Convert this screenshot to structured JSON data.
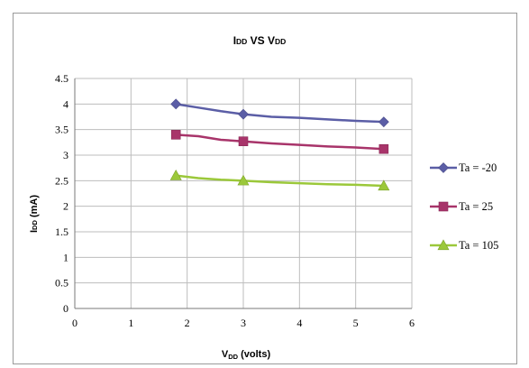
{
  "chart_data": {
    "type": "line",
    "title_parts": [
      "I",
      "DD",
      " VS V",
      "DD"
    ],
    "xlabel_parts": [
      "V",
      "DD",
      " (volts)"
    ],
    "ylabel_parts": [
      "I",
      "DD",
      " (mA)"
    ],
    "xlim": [
      0,
      6
    ],
    "ylim": [
      0,
      4.5
    ],
    "xticks": [
      "0",
      "1",
      "2",
      "3",
      "4",
      "5",
      "6"
    ],
    "yticks": [
      "0",
      "0.5",
      "1",
      "1.5",
      "2",
      "2.5",
      "3",
      "3.5",
      "4",
      "4.5"
    ],
    "grid": true,
    "legend_position": "right",
    "series": [
      {
        "name": "Ta = -20",
        "color": "#5b5ea6",
        "marker": "diamond",
        "x": [
          1.8,
          2.2,
          2.6,
          3.0,
          3.5,
          4.0,
          4.5,
          5.0,
          5.5
        ],
        "y": [
          4.0,
          3.93,
          3.86,
          3.8,
          3.75,
          3.73,
          3.7,
          3.67,
          3.65
        ],
        "marker_x": [
          1.8,
          3.0,
          5.5
        ],
        "marker_y": [
          4.0,
          3.8,
          3.65
        ]
      },
      {
        "name": "Ta = 25",
        "color": "#a8346a",
        "marker": "square",
        "x": [
          1.8,
          2.2,
          2.6,
          3.0,
          3.5,
          4.0,
          4.5,
          5.0,
          5.5
        ],
        "y": [
          3.4,
          3.37,
          3.3,
          3.27,
          3.23,
          3.2,
          3.17,
          3.15,
          3.12
        ],
        "marker_x": [
          1.8,
          3.0,
          5.5
        ],
        "marker_y": [
          3.4,
          3.27,
          3.12
        ]
      },
      {
        "name": "Ta = 105",
        "color": "#9bc83a",
        "marker": "triangle",
        "x": [
          1.8,
          2.2,
          2.6,
          3.0,
          3.5,
          4.0,
          4.5,
          5.0,
          5.5
        ],
        "y": [
          2.6,
          2.55,
          2.52,
          2.5,
          2.47,
          2.45,
          2.43,
          2.42,
          2.4
        ],
        "marker_x": [
          1.8,
          3.0,
          5.5
        ],
        "marker_y": [
          2.6,
          2.5,
          2.4
        ]
      }
    ]
  }
}
